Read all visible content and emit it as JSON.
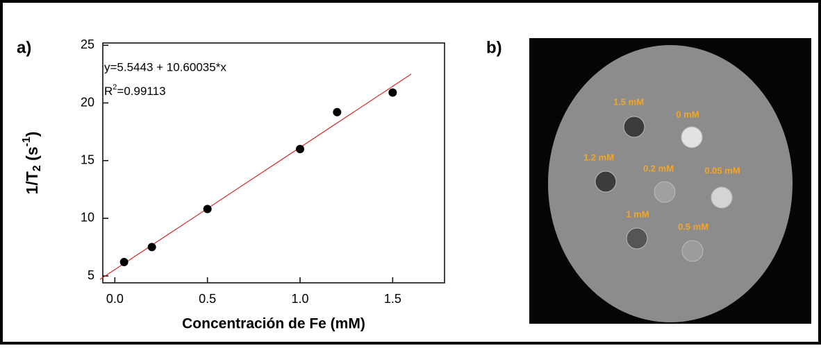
{
  "chart_data": {
    "type": "scatter",
    "panel_label": "a)",
    "x_label": "Concentración de Fe (mM)",
    "y_label": {
      "main": "1/T",
      "sub": "2",
      "mid": " (s",
      "sup": "-1",
      "end": ")"
    },
    "equation": "y=5.5443 + 10.60035*x",
    "r2": {
      "main": "R",
      "sup": "2",
      "end": "=0.99113"
    },
    "x": [
      0.05,
      0.2,
      0.5,
      1.0,
      1.2,
      1.5
    ],
    "values": [
      6.2,
      7.5,
      10.8,
      16.0,
      19.2,
      20.9
    ],
    "color": "#000000",
    "fit": {
      "x": [
        -0.08,
        1.6
      ],
      "values": [
        4.7,
        22.5
      ],
      "color": "#d42a2a"
    },
    "xlim": [
      -0.065,
      1.78
    ],
    "ylim": [
      4.4,
      25.2
    ],
    "xticks": [
      {
        "value": 0,
        "label": "0.0"
      },
      {
        "value": 0.5,
        "label": "0.5"
      },
      {
        "value": 1,
        "label": "1.0"
      },
      {
        "value": 1.5,
        "label": "1.5"
      }
    ],
    "yticks": [
      5,
      10,
      15,
      20,
      25
    ]
  },
  "image": {
    "panel_label": "b)",
    "samples": [
      "1.5 mM",
      "0 mM",
      "1.2 mM",
      "0.2 mM",
      "0.05 mM",
      "1 mM",
      "0.5 mM"
    ]
  }
}
